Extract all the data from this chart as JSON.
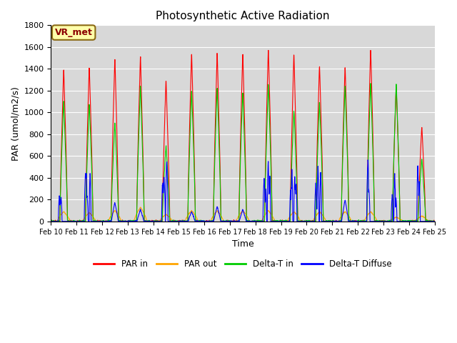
{
  "title": "Photosynthetic Active Radiation",
  "xlabel": "Time",
  "ylabel": "PAR (umol/m2/s)",
  "ylim": [
    0,
    1800
  ],
  "label_annotation": "VR_met",
  "legend_labels": [
    "PAR in",
    "PAR out",
    "Delta-T in",
    "Delta-T Diffuse"
  ],
  "line_colors": [
    "#ff0000",
    "#ffa500",
    "#00cc00",
    "#0000ff"
  ],
  "bg_color": "#d8d8d8",
  "title_fontsize": 11,
  "axis_label_fontsize": 9,
  "tick_fontsize": 8,
  "n_days": 15,
  "start_day": 10,
  "pts_per_day": 144,
  "par_in_peaks": [
    1410,
    1440,
    1510,
    1530,
    1305,
    1560,
    1560,
    1560,
    1600,
    1550,
    1450,
    1440,
    1600,
    1250,
    880
  ],
  "par_out_peaks": [
    90,
    80,
    100,
    130,
    65,
    100,
    100,
    100,
    100,
    90,
    90,
    90,
    90,
    40,
    50
  ],
  "delta_t_peaks": [
    1120,
    1090,
    920,
    1260,
    700,
    1210,
    1240,
    1200,
    1270,
    1030,
    1100,
    1260,
    1290,
    1290,
    580
  ],
  "diffuse_peaks": [
    260,
    400,
    175,
    110,
    620,
    90,
    140,
    110,
    530,
    435,
    460,
    200,
    590,
    400,
    560
  ],
  "diffuse_spiky": [
    true,
    true,
    false,
    false,
    true,
    false,
    false,
    false,
    true,
    true,
    true,
    false,
    true,
    true,
    true
  ],
  "grid_color": "#ffffff",
  "grid_linewidth": 0.8,
  "figsize": [
    6.4,
    4.8
  ],
  "dpi": 100
}
